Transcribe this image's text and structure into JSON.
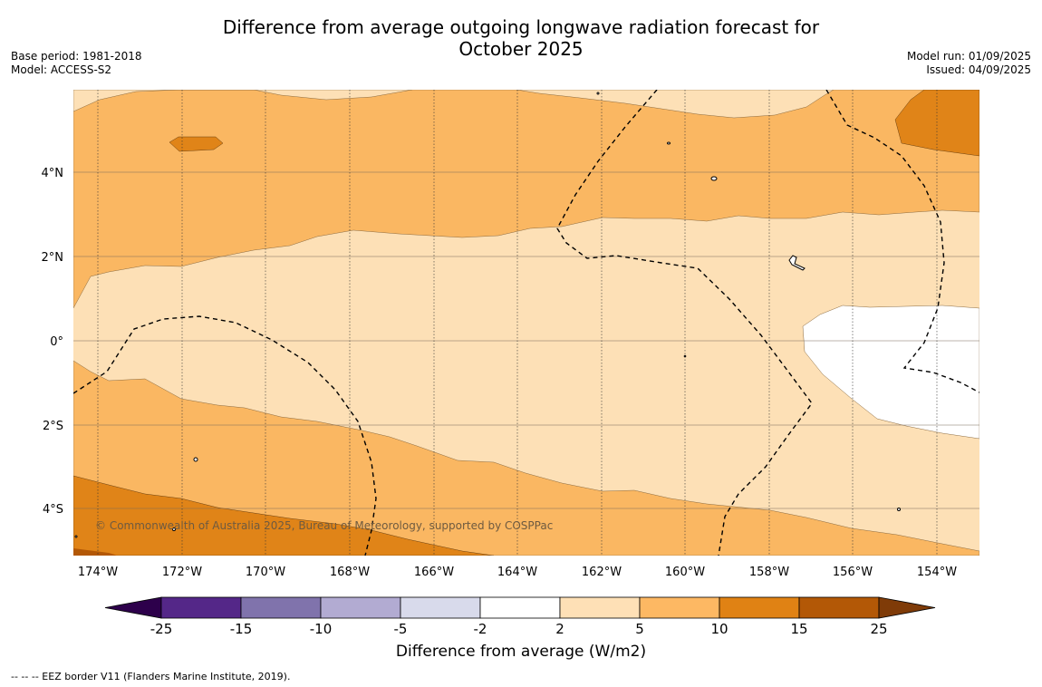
{
  "header": {
    "title_line1": "Difference from average outgoing longwave radiation forecast for",
    "title_line2": "October 2025",
    "base_period": "Base period: 1981-2018",
    "model": "Model: ACCESS-S2",
    "model_run": "Model run: 01/09/2025",
    "issued": "Issued: 04/09/2025"
  },
  "map": {
    "lat_labels": [
      "4°N",
      "2°N",
      "0°",
      "2°S",
      "4°S"
    ],
    "lon_labels": [
      "174°W",
      "172°W",
      "170°W",
      "168°W",
      "166°W",
      "164°W",
      "162°W",
      "160°W",
      "158°W",
      "156°W",
      "154°W"
    ],
    "copyright": "© Commonwealth of Australia 2025, Bureau of Meteorology, supported by COSPPac",
    "colors": {
      "band_2_5": "#fde0b6",
      "band_5_10": "#fab762",
      "band_10_15": "#e08418",
      "band_15_25": "#b35806",
      "band_neutral": "#ffffff"
    }
  },
  "colorbar": {
    "title": "Difference from average (W/m2)",
    "ticks": [
      "-25",
      "-15",
      "-10",
      "-5",
      "-2",
      "2",
      "5",
      "10",
      "15",
      "25"
    ],
    "colors": [
      "#2d004b",
      "#542788",
      "#8073ac",
      "#b2abd2",
      "#d8daeb",
      "#ffffff",
      "#fee0b6",
      "#fdb863",
      "#e08214",
      "#b35806",
      "#7f3b08"
    ]
  },
  "footnote": "--  --  -- EEZ border V11 (Flanders Marine Institute, 2019)."
}
